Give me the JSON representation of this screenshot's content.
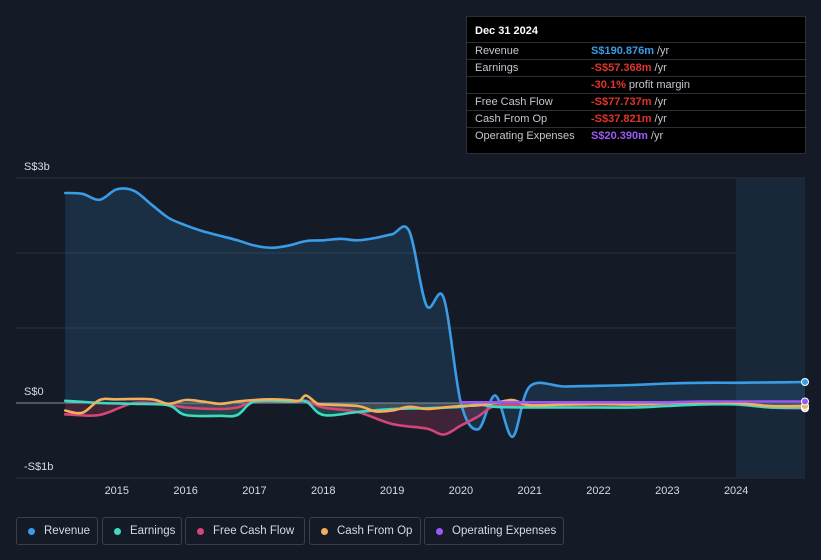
{
  "tooltip": {
    "date": "Dec 31 2024",
    "rows": [
      {
        "label": "Revenue",
        "value": "S$190.876m",
        "unit": "/yr",
        "color": "#3a9ce6"
      },
      {
        "label": "Earnings",
        "value": "-S$57.368m",
        "unit": "/yr",
        "color": "#e0352c"
      },
      {
        "label": "",
        "value": "-30.1%",
        "unit": "profit margin",
        "color": "#e0352c"
      },
      {
        "label": "Free Cash Flow",
        "value": "-S$77.737m",
        "unit": "/yr",
        "color": "#e0352c"
      },
      {
        "label": "Cash From Op",
        "value": "-S$37.821m",
        "unit": "/yr",
        "color": "#e0352c"
      },
      {
        "label": "Operating Expenses",
        "value": "S$20.390m",
        "unit": "/yr",
        "color": "#9b59f5"
      }
    ]
  },
  "chart_data": {
    "type": "area",
    "ylim": [
      -1000,
      3000
    ],
    "xlim": [
      2014.0,
      2025.0
    ],
    "y_tick_labels": [
      {
        "value": 3000,
        "label": "S$3b"
      },
      {
        "value": 0,
        "label": "S$0"
      },
      {
        "value": -1000,
        "label": "-S$1b"
      }
    ],
    "x_ticks": [
      2015,
      2016,
      2017,
      2018,
      2019,
      2020,
      2021,
      2022,
      2023,
      2024
    ],
    "x_tick_labels": [
      "2015",
      "2016",
      "2017",
      "2018",
      "2019",
      "2020",
      "2021",
      "2022",
      "2023",
      "2024"
    ],
    "forecast_start": 2024.0,
    "grid": true,
    "series": [
      {
        "name": "Revenue",
        "color": "#3a9ce6",
        "fill": true,
        "x": [
          2014.25,
          2014.5,
          2014.75,
          2015.0,
          2015.25,
          2015.5,
          2015.75,
          2016.0,
          2016.25,
          2016.5,
          2016.75,
          2017.0,
          2017.25,
          2017.5,
          2017.75,
          2018.0,
          2018.25,
          2018.5,
          2018.75,
          2019.0,
          2019.25,
          2019.5,
          2019.75,
          2020.0,
          2020.25,
          2020.5,
          2020.75,
          2021.0,
          2021.5,
          2022.0,
          2022.5,
          2023.0,
          2023.5,
          2024.0,
          2024.5,
          2025.0
        ],
        "y": [
          2800,
          2790,
          2710,
          2850,
          2830,
          2650,
          2470,
          2370,
          2290,
          2230,
          2170,
          2100,
          2070,
          2100,
          2160,
          2170,
          2190,
          2170,
          2200,
          2250,
          2290,
          1300,
          1400,
          0,
          -350,
          100,
          -450,
          220,
          220,
          230,
          240,
          260,
          270,
          270,
          275,
          280
        ]
      },
      {
        "name": "Earnings",
        "color": "#3fd9c2",
        "fill": true,
        "x": [
          2014.25,
          2014.75,
          2015.25,
          2015.75,
          2016.0,
          2016.5,
          2016.75,
          2017.0,
          2017.5,
          2017.75,
          2018.0,
          2018.5,
          2019.0,
          2019.5,
          2020.0,
          2020.25,
          2020.5,
          2021.0,
          2021.5,
          2022.0,
          2022.5,
          2023.0,
          2023.5,
          2024.0,
          2024.5,
          2025.0
        ],
        "y": [
          30,
          0,
          -10,
          -30,
          -160,
          -170,
          -160,
          20,
          20,
          20,
          -160,
          -120,
          -80,
          -70,
          -50,
          -20,
          -50,
          -60,
          -60,
          -60,
          -60,
          -40,
          -20,
          -20,
          -60,
          -60
        ]
      },
      {
        "name": "Free Cash Flow",
        "color": "#d6457a",
        "fill": true,
        "x": [
          2014.25,
          2014.75,
          2015.25,
          2015.75,
          2016.0,
          2016.5,
          2016.75,
          2017.0,
          2017.5,
          2017.75,
          2018.0,
          2018.5,
          2019.0,
          2019.5,
          2019.75,
          2020.0,
          2020.25,
          2020.5,
          2021.0,
          2021.5,
          2022.0,
          2022.5,
          2023.0,
          2023.5,
          2024.0,
          2024.5,
          2025.0
        ],
        "y": [
          -150,
          -160,
          0,
          -20,
          -60,
          -80,
          -60,
          20,
          20,
          30,
          -60,
          -120,
          -280,
          -340,
          -420,
          -300,
          -180,
          -40,
          -30,
          -25,
          -20,
          -20,
          -10,
          10,
          0,
          -60,
          -70
        ]
      },
      {
        "name": "Cash From Op",
        "color": "#f2b05c",
        "fill": false,
        "x": [
          2014.25,
          2014.5,
          2014.75,
          2015.0,
          2015.5,
          2015.75,
          2016.0,
          2016.25,
          2016.5,
          2016.75,
          2017.0,
          2017.25,
          2017.5,
          2017.65,
          2017.75,
          2017.9,
          2018.0,
          2018.5,
          2018.75,
          2019.0,
          2019.25,
          2019.5,
          2019.75,
          2020.0,
          2020.25,
          2020.5,
          2020.75,
          2021.0,
          2021.5,
          2022.0,
          2022.5,
          2023.0,
          2023.5,
          2024.0,
          2024.5,
          2025.0
        ],
        "y": [
          -100,
          -130,
          40,
          50,
          50,
          -10,
          40,
          20,
          -10,
          20,
          40,
          50,
          40,
          30,
          100,
          0,
          -20,
          -40,
          -110,
          -100,
          -50,
          -80,
          -60,
          -40,
          -30,
          0,
          40,
          -30,
          -20,
          -10,
          -20,
          0,
          10,
          0,
          -40,
          -40
        ]
      },
      {
        "name": "Operating Expenses",
        "color": "#9b59f5",
        "fill": false,
        "x": [
          2020.0,
          2020.5,
          2021.0,
          2021.5,
          2022.0,
          2022.5,
          2023.0,
          2023.5,
          2024.0,
          2024.5,
          2025.0
        ],
        "y": [
          10,
          10,
          10,
          10,
          10,
          10,
          10,
          20,
          20,
          20,
          20
        ]
      }
    ]
  },
  "legend": [
    {
      "label": "Revenue",
      "color": "#3a9ce6"
    },
    {
      "label": "Earnings",
      "color": "#3fd9c2"
    },
    {
      "label": "Free Cash Flow",
      "color": "#d6457a"
    },
    {
      "label": "Cash From Op",
      "color": "#f2b05c"
    },
    {
      "label": "Operating Expenses",
      "color": "#9b59f5"
    }
  ]
}
